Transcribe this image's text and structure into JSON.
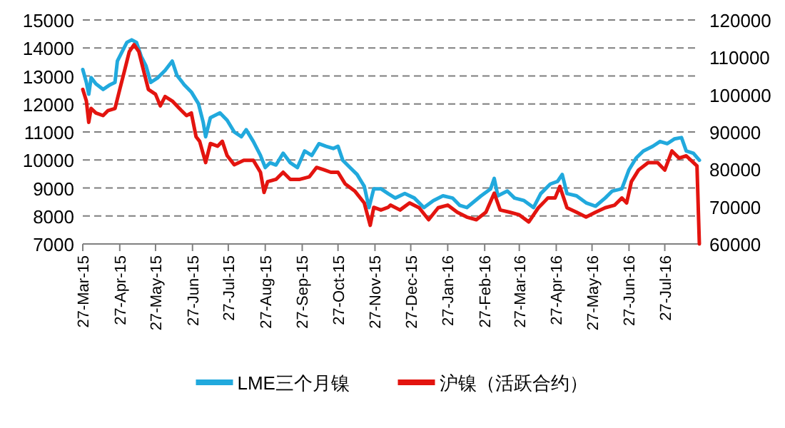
{
  "chart_data": {
    "type": "line",
    "xlim": [
      "2015-03-27",
      "2016-08-25"
    ],
    "xticks": [
      {
        "value": "2015-03-27",
        "label": "27-Mar-15"
      },
      {
        "value": "2015-04-27",
        "label": "27-Apr-15"
      },
      {
        "value": "2015-05-27",
        "label": "27-May-15"
      },
      {
        "value": "2015-06-27",
        "label": "27-Jun-15"
      },
      {
        "value": "2015-07-27",
        "label": "27-Jul-15"
      },
      {
        "value": "2015-08-27",
        "label": "27-Aug-15"
      },
      {
        "value": "2015-09-27",
        "label": "27-Sep-15"
      },
      {
        "value": "2015-10-27",
        "label": "27-Oct-15"
      },
      {
        "value": "2015-11-27",
        "label": "27-Nov-15"
      },
      {
        "value": "2015-12-27",
        "label": "27-Dec-15"
      },
      {
        "value": "2016-01-27",
        "label": "27-Jan-16"
      },
      {
        "value": "2016-02-27",
        "label": "27-Feb-16"
      },
      {
        "value": "2016-03-27",
        "label": "27-Mar-16"
      },
      {
        "value": "2016-04-27",
        "label": "27-Apr-16"
      },
      {
        "value": "2016-05-27",
        "label": "27-May-16"
      },
      {
        "value": "2016-06-27",
        "label": "27-Jun-16"
      },
      {
        "value": "2016-07-27",
        "label": "27-Jul-16"
      }
    ],
    "ylim": [
      7000,
      15000
    ],
    "yticks": [
      7000,
      8000,
      9000,
      10000,
      11000,
      12000,
      13000,
      14000,
      15000
    ],
    "y2lim": [
      60000,
      120000
    ],
    "y2ticks": [
      60000,
      70000,
      80000,
      90000,
      100000,
      110000,
      120000
    ],
    "grid": "y",
    "legend": "bottom",
    "series": [
      {
        "name": "LME三个月镍",
        "color": "#21a9dd",
        "x": [
          "2015-03-27",
          "2015-03-30",
          "2015-04-01",
          "2015-04-03",
          "2015-04-07",
          "2015-04-13",
          "2015-04-19",
          "2015-04-23",
          "2015-04-25",
          "2015-04-29",
          "2015-05-03",
          "2015-05-07",
          "2015-05-11",
          "2015-05-15",
          "2015-05-19",
          "2015-05-23",
          "2015-05-29",
          "2015-06-04",
          "2015-06-10",
          "2015-06-14",
          "2015-06-20",
          "2015-06-26",
          "2015-07-02",
          "2015-07-06",
          "2015-07-08",
          "2015-07-12",
          "2015-07-20",
          "2015-07-26",
          "2015-08-01",
          "2015-08-07",
          "2015-08-11",
          "2015-08-17",
          "2015-08-23",
          "2015-08-27",
          "2015-08-31",
          "2015-09-05",
          "2015-09-11",
          "2015-09-17",
          "2015-09-23",
          "2015-09-29",
          "2015-10-05",
          "2015-10-11",
          "2015-10-17",
          "2015-10-23",
          "2015-10-27",
          "2015-10-31",
          "2015-11-06",
          "2015-11-12",
          "2015-11-18",
          "2015-11-22",
          "2015-11-26",
          "2015-12-02",
          "2015-12-08",
          "2015-12-14",
          "2015-12-22",
          "2015-12-30",
          "2016-01-07",
          "2016-01-15",
          "2016-01-23",
          "2016-01-31",
          "2016-02-06",
          "2016-02-12",
          "2016-02-24",
          "2016-03-03",
          "2016-03-06",
          "2016-03-09",
          "2016-03-17",
          "2016-03-23",
          "2016-03-31",
          "2016-04-08",
          "2016-04-14",
          "2016-04-22",
          "2016-04-28",
          "2016-05-02",
          "2016-05-06",
          "2016-05-14",
          "2016-05-22",
          "2016-05-30",
          "2016-06-07",
          "2016-06-13",
          "2016-06-21",
          "2016-06-27",
          "2016-07-03",
          "2016-07-09",
          "2016-07-17",
          "2016-07-23",
          "2016-07-29",
          "2016-08-04",
          "2016-08-10",
          "2016-08-14",
          "2016-08-20",
          "2016-08-25"
        ],
        "values": [
          13230,
          12770,
          12350,
          12940,
          12720,
          12520,
          12690,
          12770,
          13530,
          13870,
          14200,
          14290,
          14200,
          13700,
          13360,
          12770,
          12940,
          13200,
          13530,
          13020,
          12690,
          12430,
          12010,
          11340,
          10830,
          11510,
          11680,
          11420,
          11000,
          10830,
          11080,
          10660,
          10160,
          9730,
          9900,
          9820,
          10240,
          9900,
          9730,
          10320,
          10160,
          10580,
          10490,
          10410,
          10490,
          9990,
          9730,
          9480,
          9060,
          8300,
          8970,
          8970,
          8800,
          8640,
          8800,
          8640,
          8300,
          8550,
          8720,
          8640,
          8380,
          8300,
          8720,
          8970,
          9340,
          8720,
          8890,
          8640,
          8550,
          8300,
          8800,
          9140,
          9230,
          9480,
          8800,
          8720,
          8470,
          8350,
          8640,
          8890,
          8970,
          9650,
          10070,
          10320,
          10490,
          10660,
          10580,
          10750,
          10800,
          10320,
          10240,
          9990
        ]
      },
      {
        "name": "沪镍（活跃合约）",
        "color": "#e3140f",
        "axis": "y2",
        "x": [
          "2015-03-27",
          "2015-03-30",
          "2015-04-01",
          "2015-04-03",
          "2015-04-07",
          "2015-04-13",
          "2015-04-17",
          "2015-04-23",
          "2015-04-27",
          "2015-05-01",
          "2015-05-05",
          "2015-05-09",
          "2015-05-13",
          "2015-05-17",
          "2015-05-21",
          "2015-05-27",
          "2015-05-31",
          "2015-06-04",
          "2015-06-10",
          "2015-06-16",
          "2015-06-22",
          "2015-06-26",
          "2015-06-30",
          "2015-07-03",
          "2015-07-08",
          "2015-07-12",
          "2015-07-18",
          "2015-07-22",
          "2015-07-26",
          "2015-08-01",
          "2015-08-09",
          "2015-08-17",
          "2015-08-23",
          "2015-08-26",
          "2015-08-29",
          "2015-09-05",
          "2015-09-11",
          "2015-09-17",
          "2015-09-25",
          "2015-10-03",
          "2015-10-09",
          "2015-10-15",
          "2015-10-21",
          "2015-10-27",
          "2015-11-02",
          "2015-11-10",
          "2015-11-18",
          "2015-11-23",
          "2015-11-26",
          "2015-12-02",
          "2015-12-08",
          "2015-12-10",
          "2015-12-18",
          "2015-12-26",
          "2016-01-03",
          "2016-01-11",
          "2016-01-19",
          "2016-01-27",
          "2016-02-04",
          "2016-02-12",
          "2016-02-20",
          "2016-02-28",
          "2016-03-06",
          "2016-03-11",
          "2016-03-19",
          "2016-03-27",
          "2016-04-04",
          "2016-04-12",
          "2016-04-20",
          "2016-04-26",
          "2016-04-30",
          "2016-05-06",
          "2016-05-14",
          "2016-05-22",
          "2016-05-30",
          "2016-06-07",
          "2016-06-15",
          "2016-06-21",
          "2016-06-25",
          "2016-06-29",
          "2016-07-05",
          "2016-07-13",
          "2016-07-21",
          "2016-07-27",
          "2016-08-02",
          "2016-08-08",
          "2016-08-14",
          "2016-08-20",
          "2016-08-23",
          "2016-08-25"
        ],
        "values": [
          101400,
          98300,
          92600,
          96300,
          95100,
          94400,
          95700,
          96300,
          101400,
          106400,
          111500,
          113400,
          111500,
          106400,
          101400,
          100100,
          97000,
          99500,
          98300,
          96300,
          94400,
          95100,
          88700,
          87500,
          81800,
          86900,
          86200,
          87500,
          83700,
          81200,
          82400,
          82400,
          79200,
          73800,
          76700,
          77300,
          79200,
          77300,
          77300,
          78000,
          80500,
          79900,
          79200,
          79200,
          76100,
          74200,
          71000,
          65000,
          69800,
          69100,
          69800,
          70400,
          69100,
          71000,
          69700,
          66500,
          69700,
          70400,
          68500,
          67200,
          66500,
          68500,
          73600,
          69100,
          68500,
          67800,
          65900,
          69700,
          72300,
          72300,
          75400,
          69700,
          68500,
          67200,
          68500,
          69700,
          70400,
          72300,
          71000,
          76700,
          79800,
          81800,
          81800,
          79800,
          84900,
          83000,
          83600,
          81800,
          80900,
          60000
        ]
      }
    ]
  }
}
